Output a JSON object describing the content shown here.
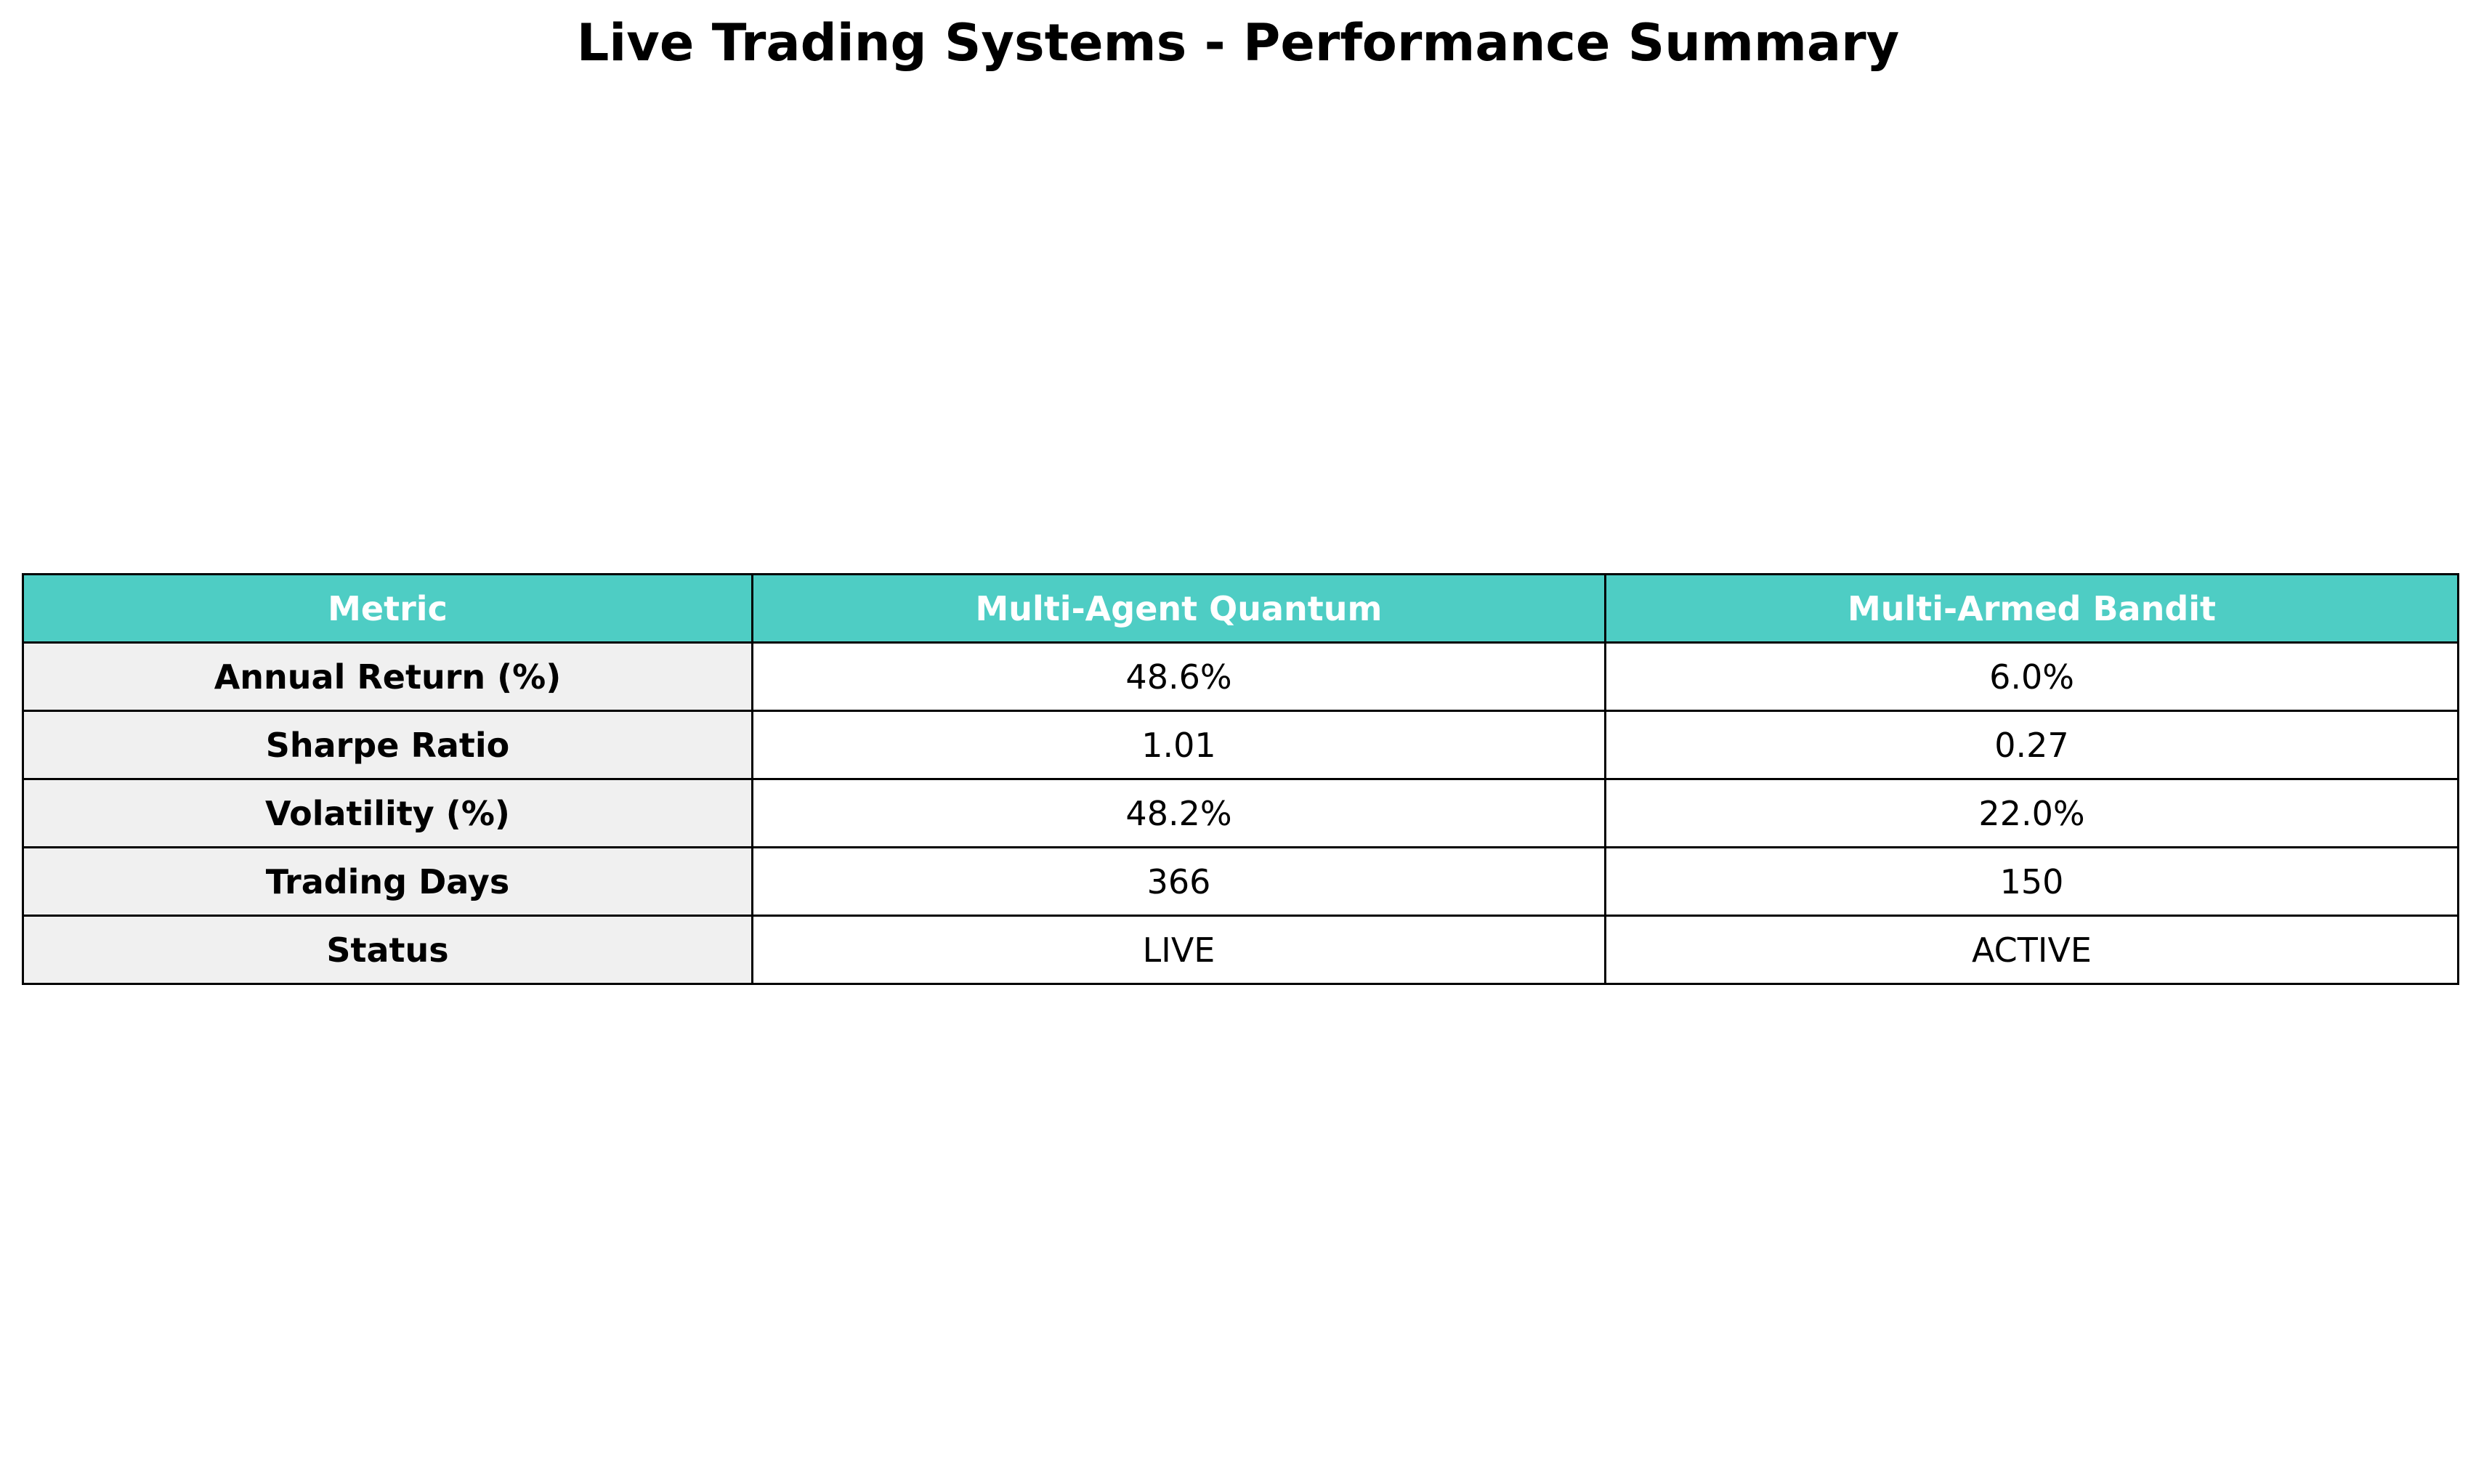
{
  "chart_data": {
    "type": "table",
    "title": "Live Trading Systems - Performance Summary",
    "header_color": "#4ECDC4",
    "metric_cell_color": "#F0F0F0",
    "columns": [
      "Metric",
      "Multi-Agent Quantum",
      "Multi-Armed Bandit"
    ],
    "rows": [
      [
        "Annual Return (%)",
        "48.6%",
        "6.0%"
      ],
      [
        "Sharpe Ratio",
        "1.01",
        "0.27"
      ],
      [
        "Volatility (%)",
        "48.2%",
        "22.0%"
      ],
      [
        "Trading Days",
        "366",
        "150"
      ],
      [
        "Status",
        "LIVE",
        "ACTIVE"
      ]
    ]
  }
}
